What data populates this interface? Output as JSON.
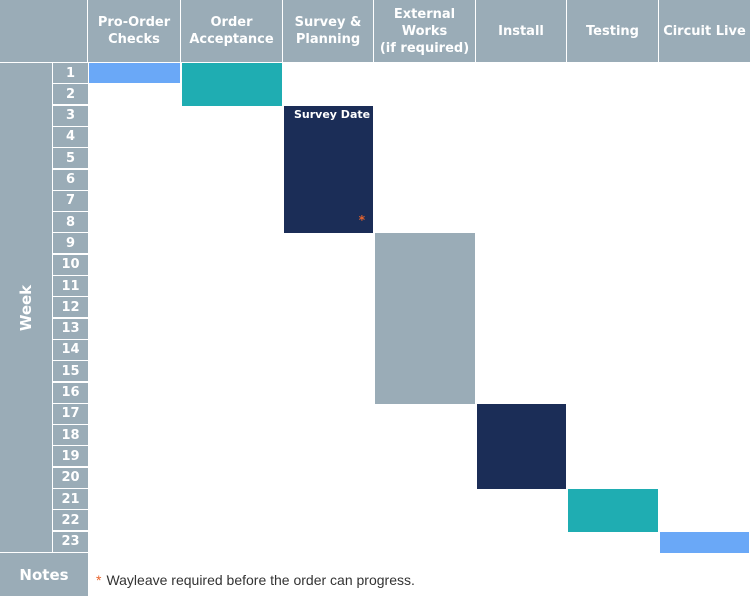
{
  "columns": [
    {
      "label": "Pro-Order\nChecks"
    },
    {
      "label": "Order\nAcceptance"
    },
    {
      "label": "Survey &\nPlanning"
    },
    {
      "label": "External\nWorks\n(if required)"
    },
    {
      "label": "Install"
    },
    {
      "label": "Testing"
    },
    {
      "label": "Circuit Live"
    }
  ],
  "row_axis_label": "Week",
  "weeks": [
    "1",
    "2",
    "3",
    "4",
    "5",
    "6",
    "7",
    "8",
    "9",
    "10",
    "11",
    "12",
    "13",
    "14",
    "15",
    "16",
    "17",
    "18",
    "19",
    "20",
    "21",
    "22",
    "23"
  ],
  "tasks": [
    {
      "column": 0,
      "start_week": 1,
      "end_week": 1,
      "color": "#6aa8f7"
    },
    {
      "column": 1,
      "start_week": 1,
      "end_week": 2,
      "color": "#1fadb2"
    },
    {
      "column": 2,
      "start_week": 3,
      "end_week": 8,
      "color": "#1b2d57",
      "label": "Survey Date",
      "marker": "*"
    },
    {
      "column": 3,
      "start_week": 9,
      "end_week": 16,
      "color": "#9aacb7"
    },
    {
      "column": 4,
      "start_week": 17,
      "end_week": 20,
      "color": "#1b2d57"
    },
    {
      "column": 5,
      "start_week": 21,
      "end_week": 22,
      "color": "#1fadb2"
    },
    {
      "column": 6,
      "start_week": 23,
      "end_week": 23,
      "color": "#6aa8f7"
    }
  ],
  "notes": {
    "label": "Notes",
    "marker": "*",
    "text": "Wayleave required before the order can progress."
  }
}
